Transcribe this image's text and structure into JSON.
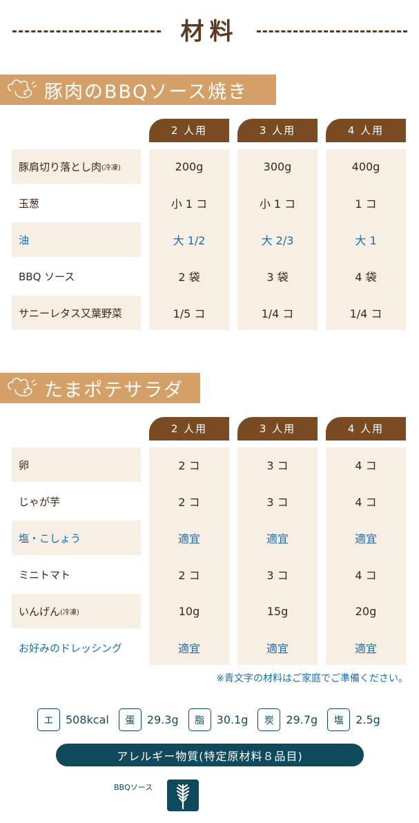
{
  "title": "材料",
  "sections": [
    {
      "title": "豚肉のBBQソース焼き",
      "headers": [
        "2 人用",
        "3 人用",
        "4 人用"
      ],
      "rows": [
        {
          "label": "豚肩切り落とし肉",
          "note": "(冷凍)",
          "values": [
            "200g",
            "300g",
            "400g"
          ],
          "blue": false
        },
        {
          "label": "玉葱",
          "note": "",
          "values": [
            "小 1 コ",
            "小 1 コ",
            "1 コ"
          ],
          "blue": false
        },
        {
          "label": "油",
          "note": "",
          "values": [
            "大 1/2",
            "大 2/3",
            "大 1"
          ],
          "blue": true
        },
        {
          "label": "BBQ ソース",
          "note": "",
          "values": [
            "2 袋",
            "3 袋",
            "4 袋"
          ],
          "blue": false
        },
        {
          "label": "サニーレタス又葉野菜",
          "note": "",
          "values": [
            "1/5 コ",
            "1/4 コ",
            "1/4 コ"
          ],
          "blue": false
        }
      ]
    },
    {
      "title": "たまポテサラダ",
      "headers": [
        "2 人用",
        "3 人用",
        "4 人用"
      ],
      "rows": [
        {
          "label": "卵",
          "note": "",
          "values": [
            "2 コ",
            "3 コ",
            "4 コ"
          ],
          "blue": false
        },
        {
          "label": "じゃが芋",
          "note": "",
          "values": [
            "2 コ",
            "3 コ",
            "4 コ"
          ],
          "blue": false
        },
        {
          "label": "塩・こしょう",
          "note": "",
          "values": [
            "適宜",
            "適宜",
            "適宜"
          ],
          "blue": true
        },
        {
          "label": "ミニトマト",
          "note": "",
          "values": [
            "2 コ",
            "3 コ",
            "4 コ"
          ],
          "blue": false
        },
        {
          "label": "いんげん",
          "note": "(冷凍)",
          "values": [
            "10g",
            "15g",
            "20g"
          ],
          "blue": false
        },
        {
          "label": "お好みのドレッシング",
          "note": "",
          "values": [
            "適宜",
            "適宜",
            "適宜"
          ],
          "blue": true
        }
      ]
    }
  ],
  "note": "※青文字の材料はご家庭でご準備ください。",
  "nutrition": [
    {
      "badge": "エ",
      "value": "508kcal"
    },
    {
      "badge": "蛋",
      "value": "29.3g"
    },
    {
      "badge": "脂",
      "value": "30.1g"
    },
    {
      "badge": "炭",
      "value": "29.7g"
    },
    {
      "badge": "塩",
      "value": "2.5g"
    }
  ],
  "allergy": {
    "title": "アレルギー物質(特定原材料８品目)",
    "items": [
      {
        "label": "BBQソース",
        "icon": "wheat-icon"
      }
    ]
  },
  "colors": {
    "brown": "#7a4a22",
    "tan": "#d4a068",
    "blue": "#1a6db0",
    "teal": "#0f4a5c"
  }
}
